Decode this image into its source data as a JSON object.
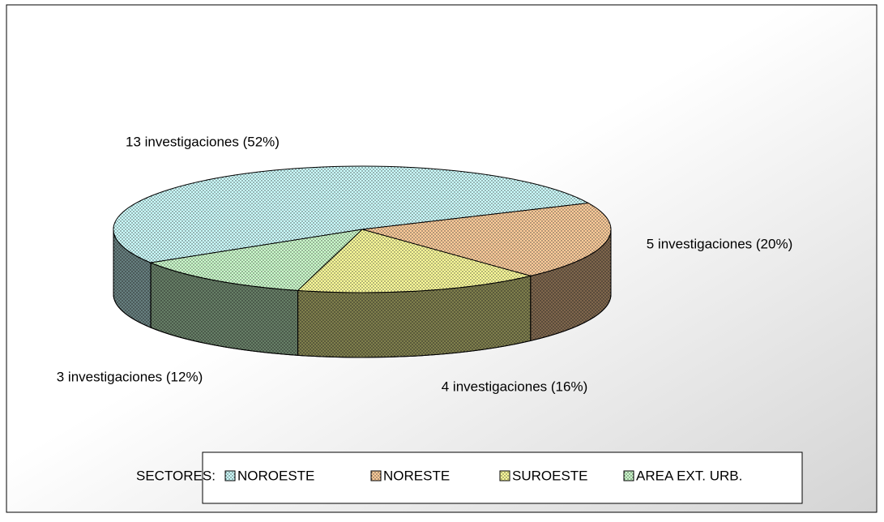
{
  "chart_data": {
    "type": "pie",
    "categories": [
      "NOROESTE",
      "NORESTE",
      "SUROESTE",
      "AREA EXT. URB."
    ],
    "values": [
      13,
      5,
      4,
      3
    ],
    "value_labels": [
      "13 investigaciones (52%)",
      "5 investigaciones (20%)",
      "4 investigaciones (16%)",
      "3 investigaciones (12%)"
    ],
    "colors": [
      "#ccffff",
      "#ffcc99",
      "#ffff99",
      "#ccffcc"
    ],
    "legend_title": "SECTORES:",
    "legend": "bottom"
  }
}
